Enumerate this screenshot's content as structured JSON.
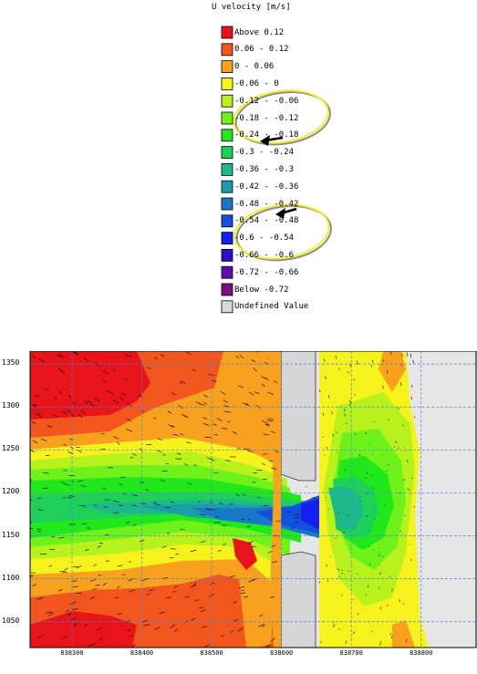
{
  "legend": {
    "title": "U velocity [m/s]",
    "items": [
      {
        "label": "Above 0.12",
        "color": "#e8141a"
      },
      {
        "label": "0.06 - 0.12",
        "color": "#f2561c"
      },
      {
        "label": "0 - 0.06",
        "color": "#f7a11e"
      },
      {
        "label": "-0.06 - 0",
        "color": "#f5f21c"
      },
      {
        "label": "-0.12 - -0.06",
        "color": "#b8f21c"
      },
      {
        "label": "-0.18 - -0.12",
        "color": "#6ef21a"
      },
      {
        "label": "-0.24 - -0.18",
        "color": "#20e81c"
      },
      {
        "label": "-0.3 - -0.24",
        "color": "#1ed05a"
      },
      {
        "label": "-0.36 - -0.3",
        "color": "#1db98a"
      },
      {
        "label": "-0.42 - -0.36",
        "color": "#1a9fa8"
      },
      {
        "label": "-0.48 - -0.42",
        "color": "#1878c8"
      },
      {
        "label": "-0.54 - -0.48",
        "color": "#1450e0"
      },
      {
        "label": "-0.6 - -0.54",
        "color": "#1420f0"
      },
      {
        "label": "-0.66 - -0.6",
        "color": "#2a10c8"
      },
      {
        "label": "-0.72 - -0.66",
        "color": "#5a10a8"
      },
      {
        "label": "Below -0.72",
        "color": "#7a1080"
      },
      {
        "label": "Undefined Value",
        "color": "#d9d9d9"
      }
    ]
  },
  "chart_data": {
    "type": "heatmap",
    "title": "",
    "xlabel": "",
    "ylabel": "",
    "x_ticks": [
      "838300",
      "838400",
      "838500",
      "838600",
      "838700",
      "838800"
    ],
    "y_ticks": [
      "1350",
      "1300",
      "1250",
      "1200",
      "1150",
      "1100",
      "1050"
    ],
    "xlim": [
      838240,
      838880
    ],
    "ylim": [
      1020,
      1365
    ],
    "grid": true,
    "vector_overlay": true,
    "highlighted_classes": [
      "-0.24 - -0.18",
      "-0.48 - -0.42"
    ]
  },
  "colors": {
    "structure_fill": "#d6d6d6",
    "undefined_fill": "#e6e6e6",
    "grid": "#4f7fe0",
    "annotation_ring": "#f5ef2a",
    "annotation_shadow": "#8a8a8a"
  }
}
